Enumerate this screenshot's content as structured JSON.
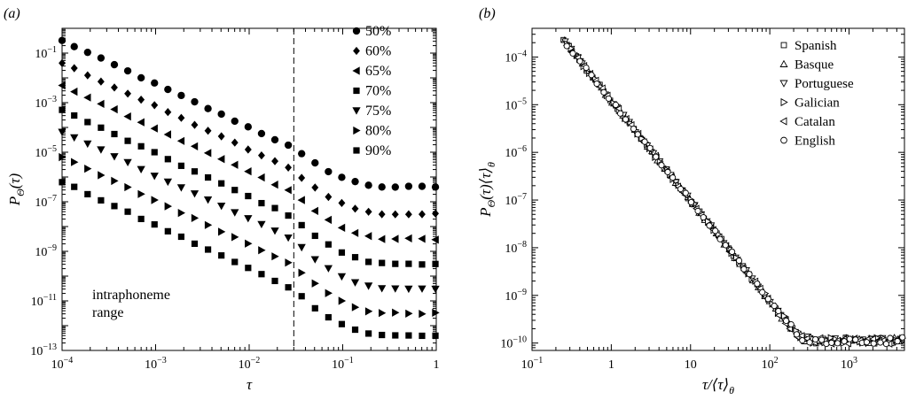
{
  "chart_data": [
    {
      "panel": "(a)",
      "type": "scatter",
      "xscale": "log",
      "yscale": "log",
      "xlim": [
        0.0001,
        1
      ],
      "ylim": [
        1e-13,
        1
      ],
      "xlabel": "τ",
      "ylabel_base": "P",
      "ylabel_sub": "Θ",
      "ylabel_rest": "(τ)",
      "x_ticks": [
        0.0001,
        0.001,
        0.01,
        0.1,
        1
      ],
      "x_tick_labels": [
        {
          "base": "10",
          "exp": "−4"
        },
        {
          "base": "10",
          "exp": "−3"
        },
        {
          "base": "10",
          "exp": "−2"
        },
        {
          "base": "10",
          "exp": "−1"
        },
        {
          "base": "1",
          "exp": ""
        }
      ],
      "y_ticks": [
        1e-13,
        1e-11,
        1e-09,
        1e-07,
        1e-05,
        0.001,
        0.1
      ],
      "y_tick_labels": [
        {
          "base": "10",
          "exp": "−13"
        },
        {
          "base": "10",
          "exp": "−11"
        },
        {
          "base": "10",
          "exp": "−9"
        },
        {
          "base": "10",
          "exp": "−7"
        },
        {
          "base": "10",
          "exp": "−5"
        },
        {
          "base": "10",
          "exp": "−3"
        },
        {
          "base": "10",
          "exp": "−1"
        }
      ],
      "vline_x": 0.03,
      "vline_style": "dashed",
      "annotation_lines": [
        "intraphoneme",
        "range"
      ],
      "legend_position": "top-right",
      "series": [
        {
          "name": "50%",
          "marker": "circle",
          "logy_at_1e-4": -0.5,
          "logy_plateau": -6.4
        },
        {
          "name": "60%",
          "marker": "diamond",
          "logy_at_1e-4": -1.4,
          "logy_plateau": -7.5
        },
        {
          "name": "65%",
          "marker": "triangle-left",
          "logy_at_1e-4": -2.3,
          "logy_plateau": -8.5
        },
        {
          "name": "70%",
          "marker": "square",
          "logy_at_1e-4": -3.3,
          "logy_plateau": -9.5
        },
        {
          "name": "75%",
          "marker": "triangle-down",
          "logy_at_1e-4": -4.2,
          "logy_plateau": -10.5
        },
        {
          "name": "80%",
          "marker": "triangle-right",
          "logy_at_1e-4": -5.2,
          "logy_plateau": -11.5
        },
        {
          "name": "90%",
          "marker": "square",
          "logy_at_1e-4": -6.2,
          "logy_plateau": -12.4
        }
      ],
      "shape_note": "power-law decay with exponent ≈ −1.75 for τ below 0.03, flattening to a plateau near τ ≈ 0.3"
    },
    {
      "panel": "(b)",
      "type": "scatter",
      "xscale": "log",
      "yscale": "log",
      "xlim": [
        0.1,
        5000
      ],
      "ylim": [
        7e-11,
        0.0004
      ],
      "xlabel_parts": {
        "pre": "τ/⟨τ⟩",
        "sub": "θ"
      },
      "ylabel_parts": {
        "base": "P",
        "sub1": "Θ",
        "mid": "(τ)⟨τ⟩",
        "sub2": "θ"
      },
      "x_ticks": [
        0.1,
        1,
        10,
        100,
        1000
      ],
      "x_tick_labels": [
        {
          "base": "10",
          "exp": "−1"
        },
        {
          "base": "1",
          "exp": ""
        },
        {
          "base": "10",
          "exp": ""
        },
        {
          "base": "10",
          "exp": "2"
        },
        {
          "base": "10",
          "exp": "3"
        }
      ],
      "y_ticks": [
        1e-10,
        1e-09,
        1e-08,
        1e-07,
        1e-06,
        1e-05,
        0.0001
      ],
      "y_tick_labels": [
        {
          "base": "10",
          "exp": "−10"
        },
        {
          "base": "10",
          "exp": "−9"
        },
        {
          "base": "10",
          "exp": "−8"
        },
        {
          "base": "10",
          "exp": "−7"
        },
        {
          "base": "10",
          "exp": "−6"
        },
        {
          "base": "10",
          "exp": "−5"
        },
        {
          "base": "10",
          "exp": "−4"
        }
      ],
      "legend_position": "top-right",
      "series": [
        {
          "name": "Spanish",
          "marker": "square-open"
        },
        {
          "name": "Basque",
          "marker": "triangle-up-open"
        },
        {
          "name": "Portuguese",
          "marker": "triangle-down-open"
        },
        {
          "name": "Galician",
          "marker": "triangle-right-open"
        },
        {
          "name": "Catalan",
          "marker": "triangle-left-open"
        },
        {
          "name": "English",
          "marker": "circle-open"
        }
      ],
      "collapse_curve": {
        "logy_at_x_0_25": -3.65,
        "slope": -2.1,
        "plateau_logy": -9.95,
        "x_range": [
          0.25,
          5000
        ]
      }
    }
  ]
}
